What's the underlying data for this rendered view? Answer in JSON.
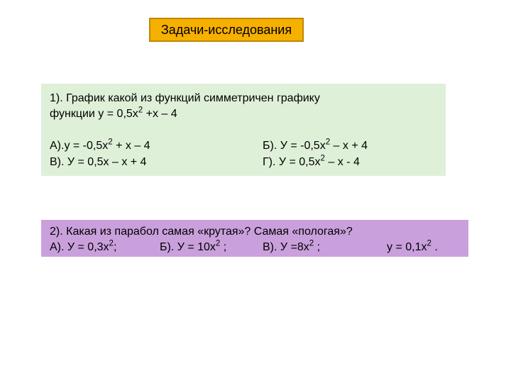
{
  "header": {
    "title": "Задачи-исследования",
    "background_color": "#f6b000",
    "border_color": "#be8700",
    "text_color": "#000000",
    "font_size": 18
  },
  "question1": {
    "background_color": "#dff0d8",
    "text_color": "#000000",
    "font_size": 16,
    "prompt_line1": "1).  График какой из функций симметричен графику",
    "prompt_line2_prefix": "функции у = 0,5х",
    "prompt_line2_sup": "2",
    "prompt_line2_suffix": " +х – 4",
    "options": {
      "a_prefix": "А).у = -0,5х",
      "a_sup": "2",
      "a_suffix": " + х – 4",
      "b_prefix": "Б). У = -0,5х",
      "b_sup": "2",
      "b_suffix": " – х + 4",
      "c": "В). У = 0,5х – х + 4",
      "d_prefix": "Г).  У = 0,5х",
      "d_sup": "2",
      "d_suffix": " – х - 4"
    }
  },
  "question2": {
    "background_color": "#c9a0dc",
    "text_color": "#000000",
    "font_size": 16,
    "prompt": "2). Какая из парабол самая «крутая»? Самая «пологая»?",
    "options": {
      "a_prefix": "А). У = 0,3х",
      "a_sup": "2",
      "a_suffix": ";",
      "b_prefix": "Б). У = 10х",
      "b_sup": "2",
      "b_suffix": " ;",
      "c_prefix": "В). У =8х",
      "c_sup": "2",
      "c_suffix": " ;",
      "d_prefix": "у = 0,1х",
      "d_sup": "2",
      "d_suffix": " ."
    }
  }
}
